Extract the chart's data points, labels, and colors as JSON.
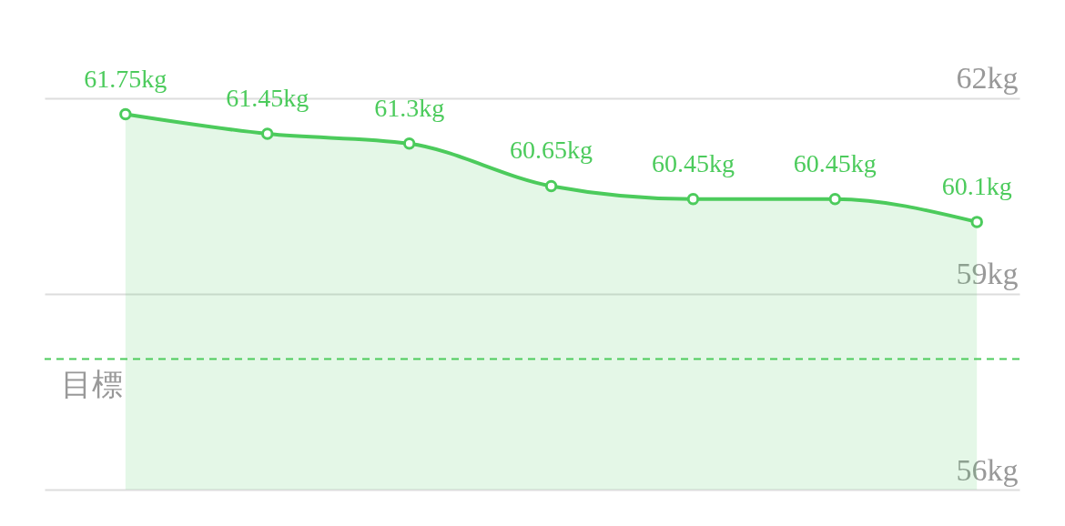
{
  "chart_data": {
    "type": "area",
    "categories": [
      null,
      null,
      null,
      null,
      null,
      null,
      null
    ],
    "series": [
      {
        "color": "#4ccb5c",
        "values": [
          61.75,
          61.45,
          61.3,
          60.65,
          60.45,
          60.45,
          60.1
        ],
        "value_labels": [
          "61.75kg",
          "61.45kg",
          "61.3kg",
          "60.65kg",
          "60.45kg",
          "60.45kg",
          "60.1kg"
        ]
      }
    ],
    "ylim": [
      56,
      63.5
    ],
    "yticks": [
      {
        "value": 56,
        "label": "56kg"
      },
      {
        "value": 59,
        "label": "59kg"
      },
      {
        "value": 62,
        "label": "62kg"
      }
    ],
    "grid": "y",
    "tick_labels": "y",
    "marker": "circle",
    "ref_lines": [
      {
        "axis": "y",
        "value": 58,
        "label": "目標",
        "color": "#4ccb5c",
        "line_style": "dashed"
      }
    ]
  }
}
